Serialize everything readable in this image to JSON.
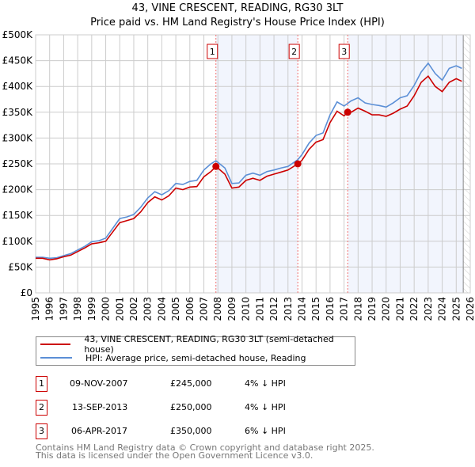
{
  "chart_data": {
    "type": "line",
    "title": "43, VINE CRESCENT, READING, RG30 3LT",
    "subtitle": "Price paid vs. HM Land Registry's House Price Index (HPI)",
    "xlim": [
      1995,
      2026
    ],
    "ylim": [
      0,
      500000
    ],
    "grid": true,
    "y_ticks": [
      0,
      50000,
      100000,
      150000,
      200000,
      250000,
      300000,
      350000,
      400000,
      450000,
      500000
    ],
    "y_tick_labels": [
      "£0",
      "£50K",
      "£100K",
      "£150K",
      "£200K",
      "£250K",
      "£300K",
      "£350K",
      "£400K",
      "£450K",
      "£500K"
    ],
    "x_tick_labels": [
      "1995",
      "1996",
      "1997",
      "1998",
      "1999",
      "2000",
      "2001",
      "2002",
      "2003",
      "2004",
      "2005",
      "2006",
      "2007",
      "2008",
      "2009",
      "2010",
      "2011",
      "2012",
      "2013",
      "2014",
      "2015",
      "2016",
      "2017",
      "2018",
      "2019",
      "2020",
      "2021",
      "2022",
      "2023",
      "2024",
      "2025",
      "2026"
    ],
    "series": [
      {
        "name": "43, VINE CRESCENT, READING, RG30 3LT (semi-detached house)",
        "color": "#cc0000",
        "x": [
          1995,
          1995.5,
          1996,
          1996.5,
          1997,
          1997.5,
          1998,
          1998.5,
          1999,
          1999.5,
          2000,
          2000.5,
          2001,
          2001.5,
          2002,
          2002.5,
          2003,
          2003.5,
          2004,
          2004.5,
          2005,
          2005.5,
          2006,
          2006.5,
          2007,
          2007.5,
          2007.86,
          2008.5,
          2009,
          2009.5,
          2010,
          2010.5,
          2011,
          2011.5,
          2012,
          2012.5,
          2013,
          2013.7,
          2014,
          2014.5,
          2015,
          2015.5,
          2016,
          2016.5,
          2017,
          2017.26,
          2017.5,
          2018,
          2018.5,
          2019,
          2019.5,
          2020,
          2020.5,
          2021,
          2021.5,
          2022,
          2022.5,
          2023,
          2023.5,
          2024,
          2024.5,
          2025,
          2025.4
        ],
        "y": [
          67000,
          67000,
          64000,
          66000,
          70000,
          73000,
          80000,
          87000,
          95000,
          97000,
          100000,
          118000,
          136000,
          140000,
          144000,
          157000,
          175000,
          186000,
          180000,
          188000,
          203000,
          200000,
          205000,
          206000,
          225000,
          235000,
          245000,
          230000,
          203000,
          205000,
          218000,
          222000,
          218000,
          226000,
          230000,
          234000,
          238000,
          250000,
          257000,
          278000,
          292000,
          297000,
          330000,
          352000,
          343000,
          350000,
          350000,
          358000,
          352000,
          345000,
          345000,
          342000,
          348000,
          356000,
          362000,
          382000,
          408000,
          420000,
          400000,
          390000,
          408000,
          415000,
          410000
        ]
      },
      {
        "name": "HPI: Average price, semi-detached house, Reading",
        "color": "#5b8fd6",
        "x": [
          1995,
          1995.5,
          1996,
          1996.5,
          1997,
          1997.5,
          1998,
          1998.5,
          1999,
          1999.5,
          2000,
          2000.5,
          2001,
          2001.5,
          2002,
          2002.5,
          2003,
          2003.5,
          2004,
          2004.5,
          2005,
          2005.5,
          2006,
          2006.5,
          2007,
          2007.5,
          2007.86,
          2008.5,
          2009,
          2009.5,
          2010,
          2010.5,
          2011,
          2011.5,
          2012,
          2012.5,
          2013,
          2013.7,
          2014,
          2014.5,
          2015,
          2015.5,
          2016,
          2016.5,
          2017,
          2017.5,
          2018,
          2018.5,
          2019,
          2019.5,
          2020,
          2020.5,
          2021,
          2021.5,
          2022,
          2022.5,
          2023,
          2023.5,
          2024,
          2024.5,
          2025,
          2025.4
        ],
        "y": [
          69000,
          69000,
          67000,
          68000,
          72000,
          76000,
          83000,
          90000,
          99000,
          101000,
          106000,
          125000,
          144000,
          147000,
          152000,
          166000,
          184000,
          196000,
          190000,
          198000,
          212000,
          210000,
          216000,
          218000,
          238000,
          250000,
          256000,
          242000,
          212000,
          213000,
          228000,
          232000,
          228000,
          235000,
          238000,
          242000,
          245000,
          258000,
          268000,
          290000,
          305000,
          310000,
          345000,
          370000,
          362000,
          372000,
          378000,
          368000,
          365000,
          363000,
          360000,
          368000,
          378000,
          382000,
          402000,
          428000,
          445000,
          425000,
          412000,
          435000,
          440000,
          435000
        ]
      }
    ],
    "sales": [
      {
        "label": "1",
        "x": 2007.86,
        "y": 245000
      },
      {
        "label": "2",
        "x": 2013.7,
        "y": 250000
      },
      {
        "label": "3",
        "x": 2017.26,
        "y": 350000
      }
    ],
    "data_end": 2025.5
  },
  "legend": {
    "property": "43, VINE CRESCENT, READING, RG30 3LT (semi-detached house)",
    "hpi": "HPI: Average price, semi-detached house, Reading"
  },
  "transactions": [
    {
      "num": "1",
      "date": "09-NOV-2007",
      "price": "£245,000",
      "delta": "4% ↓ HPI"
    },
    {
      "num": "2",
      "date": "13-SEP-2013",
      "price": "£250,000",
      "delta": "4% ↓ HPI"
    },
    {
      "num": "3",
      "date": "06-APR-2017",
      "price": "£350,000",
      "delta": "6% ↓ HPI"
    }
  ],
  "footer": {
    "line1": "Contains HM Land Registry data © Crown copyright and database right 2025.",
    "line2": "This data is licensed under the Open Government Licence v3.0."
  }
}
